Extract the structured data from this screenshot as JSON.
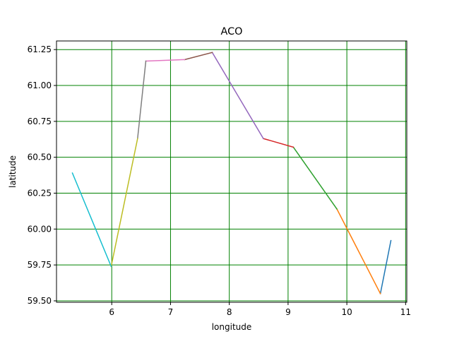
{
  "chart_data": {
    "type": "line",
    "title": "ACO",
    "xlabel": "longitude",
    "ylabel": "latitude",
    "xlim": [
      5.06,
      11.02
    ],
    "ylim": [
      59.49,
      61.31
    ],
    "grid": true,
    "grid_color": "#008000",
    "x_ticks": [
      6,
      7,
      8,
      9,
      10,
      11
    ],
    "y_ticks": [
      59.5,
      59.75,
      60.0,
      60.25,
      60.5,
      60.75,
      61.0,
      61.25
    ],
    "x_tick_labels": [
      "6",
      "7",
      "8",
      "9",
      "10",
      "11"
    ],
    "y_tick_labels": [
      "59.50",
      "59.75",
      "60.00",
      "60.25",
      "60.50",
      "60.75",
      "61.00",
      "61.25"
    ],
    "series": [
      {
        "color": "#1f77b4",
        "x": [
          10.75,
          10.57
        ],
        "y": [
          59.92,
          59.55
        ]
      },
      {
        "color": "#ff7f0e",
        "x": [
          10.57,
          9.83
        ],
        "y": [
          59.55,
          60.14
        ]
      },
      {
        "color": "#2ca02c",
        "x": [
          9.83,
          9.09
        ],
        "y": [
          60.14,
          60.57
        ]
      },
      {
        "color": "#d62728",
        "x": [
          9.09,
          8.58
        ],
        "y": [
          60.57,
          60.63
        ]
      },
      {
        "color": "#9467bd",
        "x": [
          8.58,
          7.71
        ],
        "y": [
          60.63,
          61.23
        ]
      },
      {
        "color": "#8c564b",
        "x": [
          7.71,
          7.24
        ],
        "y": [
          61.23,
          61.18
        ]
      },
      {
        "color": "#e377c2",
        "x": [
          7.24,
          6.58
        ],
        "y": [
          61.18,
          61.17
        ]
      },
      {
        "color": "#7f7f7f",
        "x": [
          6.58,
          6.44
        ],
        "y": [
          61.17,
          60.63
        ]
      },
      {
        "color": "#bcbd22",
        "x": [
          6.44,
          5.99
        ],
        "y": [
          60.63,
          59.74
        ]
      },
      {
        "color": "#17becf",
        "x": [
          5.99,
          5.33
        ],
        "y": [
          59.74,
          60.39
        ]
      }
    ]
  }
}
